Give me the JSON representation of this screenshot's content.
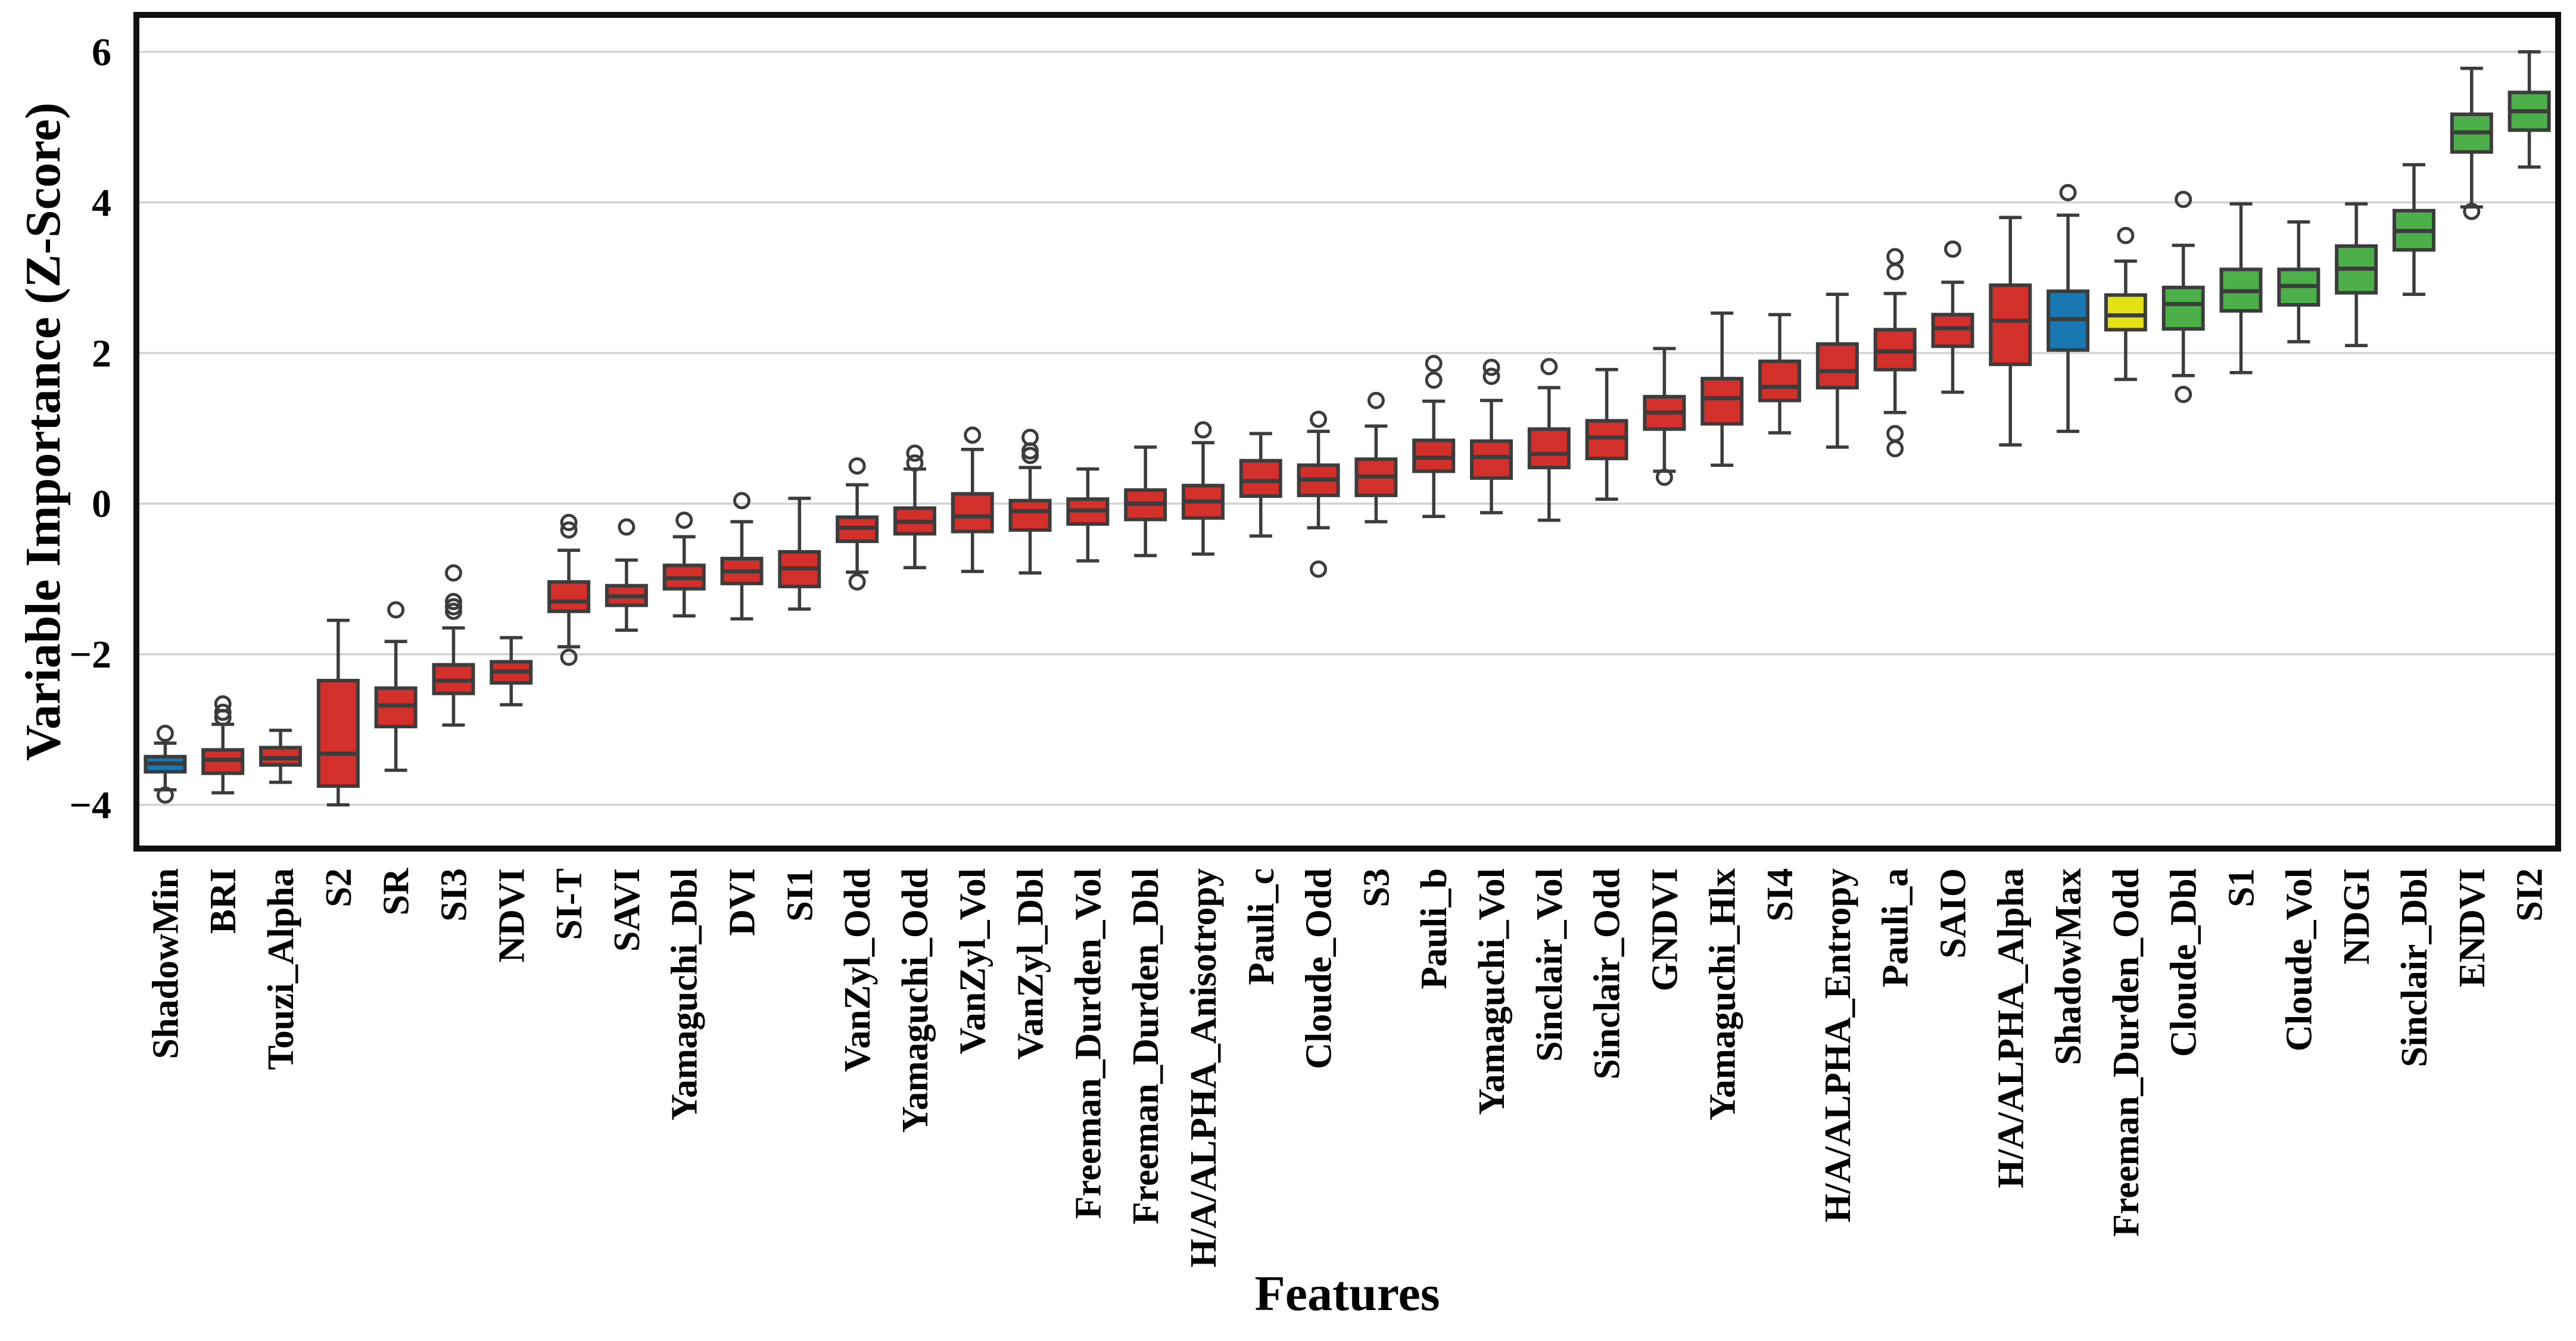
{
  "palette": {
    "red": "#d32f2b",
    "blue": "#1878b2",
    "yellow": "#e5e214",
    "green": "#4daf4a",
    "box_edge": "#3c3c3c",
    "grid": "#d2d2d2",
    "spine": "#111111",
    "background": "#ffffff"
  },
  "chart_data": {
    "type": "boxplot",
    "title": "",
    "xlabel": "Features",
    "ylabel": "Variable Importance (Z-Score)",
    "ylim": [
      -4.58,
      6.49
    ],
    "yticks": [
      6,
      4,
      2,
      0,
      -2,
      -4
    ],
    "grid": "horizontal-only",
    "legend": "none",
    "categories": [
      "ShadowMin",
      "BRI",
      "Touzi_Alpha",
      "S2",
      "SR",
      "SI3",
      "NDVI",
      "SI-T",
      "SAVI",
      "Yamaguchi_Dbl",
      "DVI",
      "SI1",
      "VanZyl_Odd",
      "Yamaguchi_Odd",
      "VanZyl_Vol",
      "VanZyl_Dbl",
      "Freeman_Durden_Vol",
      "Freeman_Durden_Dbl",
      "H/A/ALPHA_Anisotropy",
      "Pauli_c",
      "Cloude_Odd",
      "S3",
      "Pauli_b",
      "Yamaguchi_Vol",
      "Sinclair_Vol",
      "Sinclair_Odd",
      "GNDVI",
      "Yamaguchi_Hlx",
      "SI4",
      "H/A/ALPHA_Entropy",
      "Pauli_a",
      "SAIO",
      "H/A/ALPHA_Alpha",
      "ShadowMax",
      "Freeman_Durden_Odd",
      "Cloude_Dbl",
      "S1",
      "Cloude_Vol",
      "NDGI",
      "Sinclair_Dbl",
      "ENDVI",
      "SI2"
    ],
    "series": [
      {
        "label": "ShadowMin",
        "color": "blue",
        "whislo": -3.8,
        "q1": -3.56,
        "med": -3.45,
        "q3": -3.36,
        "whishi": -3.18,
        "fliers": [
          -3.05,
          -3.87
        ]
      },
      {
        "label": "BRI",
        "color": "red",
        "whislo": -3.84,
        "q1": -3.58,
        "med": -3.4,
        "q3": -3.27,
        "whishi": -2.93,
        "fliers": [
          -2.66,
          -2.77,
          -2.84
        ]
      },
      {
        "label": "Touzi_Alpha",
        "color": "red",
        "whislo": -3.7,
        "q1": -3.47,
        "med": -3.38,
        "q3": -3.24,
        "whishi": -3.01,
        "fliers": []
      },
      {
        "label": "S2",
        "color": "red",
        "whislo": -4.0,
        "q1": -3.75,
        "med": -3.32,
        "q3": -2.35,
        "whishi": -1.55,
        "fliers": []
      },
      {
        "label": "SR",
        "color": "red",
        "whislo": -3.54,
        "q1": -2.96,
        "med": -2.68,
        "q3": -2.45,
        "whishi": -1.83,
        "fliers": [
          -1.41
        ]
      },
      {
        "label": "SI3",
        "color": "red",
        "whislo": -2.94,
        "q1": -2.52,
        "med": -2.35,
        "q3": -2.14,
        "whishi": -1.65,
        "fliers": [
          -0.92,
          -1.3,
          -1.37,
          -1.43
        ]
      },
      {
        "label": "NDVI",
        "color": "red",
        "whislo": -2.67,
        "q1": -2.38,
        "med": -2.23,
        "q3": -2.1,
        "whishi": -1.78,
        "fliers": []
      },
      {
        "label": "SI-T",
        "color": "red",
        "whislo": -1.9,
        "q1": -1.43,
        "med": -1.3,
        "q3": -1.04,
        "whishi": -0.62,
        "fliers": [
          -0.25,
          -0.35,
          -2.04
        ]
      },
      {
        "label": "SAVI",
        "color": "red",
        "whislo": -1.68,
        "q1": -1.35,
        "med": -1.23,
        "q3": -1.09,
        "whishi": -0.75,
        "fliers": [
          -0.31
        ]
      },
      {
        "label": "Yamaguchi_Dbl",
        "color": "red",
        "whislo": -1.49,
        "q1": -1.13,
        "med": -0.99,
        "q3": -0.82,
        "whishi": -0.44,
        "fliers": [
          -0.22
        ]
      },
      {
        "label": "DVI",
        "color": "red",
        "whislo": -1.53,
        "q1": -1.06,
        "med": -0.9,
        "q3": -0.73,
        "whishi": -0.24,
        "fliers": [
          0.04
        ]
      },
      {
        "label": "SI1",
        "color": "red",
        "whislo": -1.4,
        "q1": -1.1,
        "med": -0.86,
        "q3": -0.64,
        "whishi": 0.07,
        "fliers": []
      },
      {
        "label": "VanZyl_Odd",
        "color": "red",
        "whislo": -0.91,
        "q1": -0.5,
        "med": -0.32,
        "q3": -0.18,
        "whishi": 0.25,
        "fliers": [
          0.5,
          -1.04
        ]
      },
      {
        "label": "Yamaguchi_Odd",
        "color": "red",
        "whislo": -0.85,
        "q1": -0.4,
        "med": -0.24,
        "q3": -0.06,
        "whishi": 0.46,
        "fliers": [
          0.67,
          0.54
        ]
      },
      {
        "label": "VanZyl_Vol",
        "color": "red",
        "whislo": -0.9,
        "q1": -0.37,
        "med": -0.17,
        "q3": 0.13,
        "whishi": 0.72,
        "fliers": [
          0.91
        ]
      },
      {
        "label": "VanZyl_Dbl",
        "color": "red",
        "whislo": -0.92,
        "q1": -0.35,
        "med": -0.1,
        "q3": 0.04,
        "whishi": 0.48,
        "fliers": [
          0.88,
          0.7,
          0.64
        ]
      },
      {
        "label": "Freeman_Durden_Vol",
        "color": "red",
        "whislo": -0.76,
        "q1": -0.27,
        "med": -0.09,
        "q3": 0.06,
        "whishi": 0.46,
        "fliers": []
      },
      {
        "label": "Freeman_Durden_Dbl",
        "color": "red",
        "whislo": -0.69,
        "q1": -0.21,
        "med": 0.0,
        "q3": 0.18,
        "whishi": 0.75,
        "fliers": []
      },
      {
        "label": "H/A/ALPHA_Anisotropy",
        "color": "red",
        "whislo": -0.67,
        "q1": -0.19,
        "med": 0.03,
        "q3": 0.24,
        "whishi": 0.81,
        "fliers": [
          0.98
        ]
      },
      {
        "label": "Pauli_c",
        "color": "red",
        "whislo": -0.43,
        "q1": 0.1,
        "med": 0.3,
        "q3": 0.57,
        "whishi": 0.93,
        "fliers": []
      },
      {
        "label": "Cloude_Odd",
        "color": "red",
        "whislo": -0.32,
        "q1": 0.11,
        "med": 0.32,
        "q3": 0.51,
        "whishi": 0.96,
        "fliers": [
          1.12,
          -0.87
        ]
      },
      {
        "label": "S3",
        "color": "red",
        "whislo": -0.24,
        "q1": 0.11,
        "med": 0.36,
        "q3": 0.59,
        "whishi": 1.03,
        "fliers": [
          1.37
        ]
      },
      {
        "label": "Pauli_b",
        "color": "red",
        "whislo": -0.17,
        "q1": 0.43,
        "med": 0.61,
        "q3": 0.84,
        "whishi": 1.36,
        "fliers": [
          1.86,
          1.64
        ]
      },
      {
        "label": "Yamaguchi_Vol",
        "color": "red",
        "whislo": -0.12,
        "q1": 0.34,
        "med": 0.62,
        "q3": 0.83,
        "whishi": 1.37,
        "fliers": [
          1.81,
          1.69
        ]
      },
      {
        "label": "Sinclair_Vol",
        "color": "red",
        "whislo": -0.22,
        "q1": 0.48,
        "med": 0.66,
        "q3": 0.99,
        "whishi": 1.54,
        "fliers": [
          1.82
        ]
      },
      {
        "label": "Sinclair_Odd",
        "color": "red",
        "whislo": 0.06,
        "q1": 0.6,
        "med": 0.88,
        "q3": 1.1,
        "whishi": 1.78,
        "fliers": []
      },
      {
        "label": "GNDVI",
        "color": "red",
        "whislo": 0.43,
        "q1": 0.99,
        "med": 1.21,
        "q3": 1.42,
        "whishi": 2.06,
        "fliers": [
          0.35
        ]
      },
      {
        "label": "Yamaguchi_Hlx",
        "color": "red",
        "whislo": 0.51,
        "q1": 1.06,
        "med": 1.4,
        "q3": 1.66,
        "whishi": 2.53,
        "fliers": []
      },
      {
        "label": "SI4",
        "color": "red",
        "whislo": 0.94,
        "q1": 1.37,
        "med": 1.55,
        "q3": 1.89,
        "whishi": 2.51,
        "fliers": []
      },
      {
        "label": "H/A/ALPHA_Entropy",
        "color": "red",
        "whislo": 0.75,
        "q1": 1.54,
        "med": 1.76,
        "q3": 2.12,
        "whishi": 2.78,
        "fliers": []
      },
      {
        "label": "Pauli_a",
        "color": "red",
        "whislo": 1.21,
        "q1": 1.78,
        "med": 2.02,
        "q3": 2.31,
        "whishi": 2.79,
        "fliers": [
          3.28,
          3.08,
          0.93,
          0.73
        ]
      },
      {
        "label": "SAIO",
        "color": "red",
        "whislo": 1.48,
        "q1": 2.09,
        "med": 2.33,
        "q3": 2.51,
        "whishi": 2.94,
        "fliers": [
          3.38
        ]
      },
      {
        "label": "H/A/ALPHA_Alpha",
        "color": "red",
        "whislo": 0.78,
        "q1": 1.85,
        "med": 2.43,
        "q3": 2.9,
        "whishi": 3.8,
        "fliers": []
      },
      {
        "label": "ShadowMax",
        "color": "blue",
        "whislo": 0.96,
        "q1": 2.04,
        "med": 2.45,
        "q3": 2.82,
        "whishi": 3.83,
        "fliers": [
          4.13
        ]
      },
      {
        "label": "Freeman_Durden_Odd",
        "color": "yellow",
        "whislo": 1.65,
        "q1": 2.31,
        "med": 2.5,
        "q3": 2.77,
        "whishi": 3.22,
        "fliers": [
          3.56
        ]
      },
      {
        "label": "Cloude_Dbl",
        "color": "green",
        "whislo": 1.7,
        "q1": 2.32,
        "med": 2.65,
        "q3": 2.87,
        "whishi": 3.43,
        "fliers": [
          4.04,
          1.45
        ]
      },
      {
        "label": "S1",
        "color": "green",
        "whislo": 1.74,
        "q1": 2.56,
        "med": 2.82,
        "q3": 3.11,
        "whishi": 3.98,
        "fliers": []
      },
      {
        "label": "Cloude_Vol",
        "color": "green",
        "whislo": 2.15,
        "q1": 2.64,
        "med": 2.89,
        "q3": 3.11,
        "whishi": 3.74,
        "fliers": []
      },
      {
        "label": "NDGI",
        "color": "green",
        "whislo": 2.1,
        "q1": 2.8,
        "med": 3.12,
        "q3": 3.42,
        "whishi": 3.98,
        "fliers": []
      },
      {
        "label": "Sinclair_Dbl",
        "color": "green",
        "whislo": 2.78,
        "q1": 3.37,
        "med": 3.62,
        "q3": 3.89,
        "whishi": 4.5,
        "fliers": []
      },
      {
        "label": "ENDVI",
        "color": "green",
        "whislo": 3.94,
        "q1": 4.67,
        "med": 4.93,
        "q3": 5.17,
        "whishi": 5.78,
        "fliers": [
          3.88
        ]
      },
      {
        "label": "SI2",
        "color": "green",
        "whislo": 4.47,
        "q1": 4.96,
        "med": 5.21,
        "q3": 5.46,
        "whishi": 6.0,
        "fliers": []
      }
    ]
  }
}
